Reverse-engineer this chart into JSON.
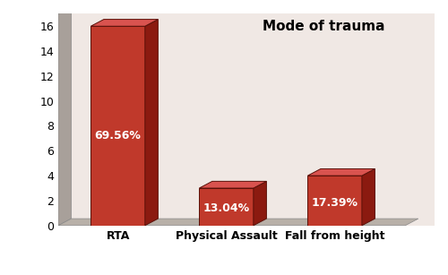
{
  "categories": [
    "RTA",
    "Physical Assault",
    "Fall from height"
  ],
  "values": [
    16,
    3,
    4
  ],
  "labels": [
    "69.56%",
    "13.04%",
    "17.39%"
  ],
  "title": "Mode of trauma",
  "ylim": [
    0,
    17
  ],
  "yticks": [
    0,
    2,
    4,
    6,
    8,
    10,
    12,
    14,
    16
  ],
  "bar_face_color": "#c0392b",
  "bar_top_color": "#d9534f",
  "bar_side_color": "#8b1a10",
  "plot_bg_color": "#f0e8e4",
  "left_wall_color": "#a8a09a",
  "floor_color": "#b8b0a8",
  "title_fontsize": 11,
  "label_fontsize": 9,
  "tick_fontsize": 9,
  "bar_width": 0.5,
  "ddx": 0.12,
  "ddy": 0.55
}
